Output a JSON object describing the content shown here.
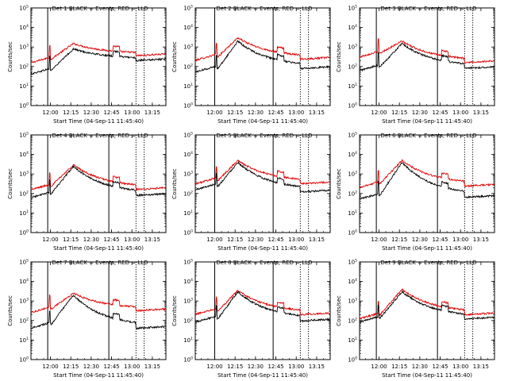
{
  "chart_data": [
    {
      "type": "line",
      "title": "Det 1 BLACK = Events, RED = LLD",
      "ylabel": "Counts/sec",
      "xlabel": "Start Time (04-Sep-11 11:45:40)",
      "x_ticks": [
        "12:00",
        "12:15",
        "12:30",
        "12:45",
        "13:00",
        "13:15"
      ],
      "y_ticks": [
        "10^0",
        "10^1",
        "10^2",
        "10^3",
        "10^4",
        "10^5"
      ],
      "yscale": "log",
      "ylim": [
        1,
        100000
      ],
      "xlim": [
        "11:45:40",
        "13:25:00"
      ],
      "markers": {
        "solid": [
          "11:58",
          "12:43"
        ],
        "dotted": [
          "13:03",
          "13:09"
        ]
      },
      "series": [
        {
          "color": "#000000",
          "base": 40,
          "peak": 800,
          "end": 250
        },
        {
          "color": "#e00000",
          "base": 150,
          "peak": 1500,
          "end": 450
        }
      ]
    },
    {
      "type": "line",
      "title": "Det 2 BLACK = Events, RED = LLD",
      "ylabel": "Counts/sec",
      "xlabel": "Start Time (04-Sep-11 11:45:40)",
      "x_ticks": [
        "12:00",
        "12:15",
        "12:30",
        "12:45",
        "13:00",
        "13:15"
      ],
      "y_ticks": [
        "10^0",
        "10^1",
        "10^2",
        "10^3",
        "10^4",
        "10^5"
      ],
      "yscale": "log",
      "ylim": [
        1,
        100000
      ],
      "xlim": [
        "11:45:40",
        "13:25:00"
      ],
      "markers": {
        "solid": [
          "12:00",
          "12:43"
        ],
        "dotted": [
          "13:03",
          "13:09"
        ]
      },
      "series": [
        {
          "color": "#000000",
          "base": 50,
          "peak": 2000,
          "end": 100
        },
        {
          "color": "#e00000",
          "base": 200,
          "peak": 3000,
          "end": 300
        }
      ]
    },
    {
      "type": "line",
      "title": "Det 3 BLACK = Events, RED = LLD",
      "ylabel": "Counts/sec",
      "xlabel": "Start Time (04-Sep-11 11:45:40)",
      "x_ticks": [
        "12:00",
        "12:15",
        "12:30",
        "12:45",
        "13:00",
        "13:15"
      ],
      "y_ticks": [
        "10^0",
        "10^1",
        "10^2",
        "10^3",
        "10^4",
        "10^5"
      ],
      "yscale": "log",
      "ylim": [
        1,
        100000
      ],
      "xlim": [
        "11:45:40",
        "13:25:00"
      ],
      "markers": {
        "solid": [
          "11:58",
          "12:43"
        ],
        "dotted": [
          "13:03",
          "13:09"
        ]
      },
      "series": [
        {
          "color": "#000000",
          "base": 60,
          "peak": 1500,
          "end": 100
        },
        {
          "color": "#e00000",
          "base": 300,
          "peak": 2000,
          "end": 200
        }
      ]
    },
    {
      "type": "line",
      "title": "Det 4 BLACK = Events, RED = LLD",
      "ylabel": "Counts/sec",
      "xlabel": "Start Time (04-Sep-11 11:45:40)",
      "x_ticks": [
        "12:00",
        "12:15",
        "12:30",
        "12:45",
        "13:00",
        "13:15"
      ],
      "y_ticks": [
        "10^0",
        "10^1",
        "10^2",
        "10^3",
        "10^4",
        "10^5"
      ],
      "yscale": "log",
      "ylim": [
        1,
        100000
      ],
      "xlim": [
        "11:45:40",
        "13:25:00"
      ],
      "markers": {
        "solid": [
          "11:58",
          "12:43"
        ],
        "dotted": [
          "13:03",
          "13:09"
        ]
      },
      "series": [
        {
          "color": "#000000",
          "base": 60,
          "peak": 2500,
          "end": 100
        },
        {
          "color": "#e00000",
          "base": 150,
          "peak": 3000,
          "end": 200
        }
      ]
    },
    {
      "type": "line",
      "title": "Det 5 BLACK = Events, RED = LLD",
      "ylabel": "Counts/sec",
      "xlabel": "Start Time (04-Sep-11 11:45:40)",
      "x_ticks": [
        "12:00",
        "12:15",
        "12:30",
        "12:45",
        "13:00",
        "13:15"
      ],
      "y_ticks": [
        "10^0",
        "10^1",
        "10^2",
        "10^3",
        "10^4",
        "10^5"
      ],
      "yscale": "log",
      "ylim": [
        1,
        100000
      ],
      "xlim": [
        "11:45:40",
        "13:25:00"
      ],
      "markers": {
        "solid": [
          "12:00",
          "12:43"
        ],
        "dotted": [
          "13:03",
          "13:09"
        ]
      },
      "series": [
        {
          "color": "#000000",
          "base": 150,
          "peak": 4000,
          "end": 150
        },
        {
          "color": "#e00000",
          "base": 300,
          "peak": 5000,
          "end": 400
        }
      ]
    },
    {
      "type": "line",
      "title": "Det 6 BLACK = Events, RED = LLD",
      "ylabel": "Counts/sec",
      "xlabel": "Start Time (04-Sep-11 11:45:40)",
      "x_ticks": [
        "12:00",
        "12:15",
        "12:30",
        "12:45",
        "13:00",
        "13:15"
      ],
      "y_ticks": [
        "10^0",
        "10^1",
        "10^2",
        "10^3",
        "10^4",
        "10^5"
      ],
      "yscale": "log",
      "ylim": [
        1,
        100000
      ],
      "xlim": [
        "11:45:40",
        "13:25:00"
      ],
      "markers": {
        "solid": [
          "11:58",
          "12:43"
        ],
        "dotted": [
          "13:03",
          "13:09"
        ]
      },
      "series": [
        {
          "color": "#000000",
          "base": 50,
          "peak": 4000,
          "end": 80
        },
        {
          "color": "#e00000",
          "base": 200,
          "peak": 5000,
          "end": 300
        }
      ]
    },
    {
      "type": "line",
      "title": "Det 7 BLACK = Events, RED = LLD",
      "ylabel": "Counts/sec",
      "xlabel": "Start Time (04-Sep-11 11:45:40)",
      "x_ticks": [
        "12:00",
        "12:15",
        "12:30",
        "12:45",
        "13:00",
        "13:15"
      ],
      "y_ticks": [
        "10^0",
        "10^1",
        "10^2",
        "10^3",
        "10^4",
        "10^5"
      ],
      "yscale": "log",
      "ylim": [
        1,
        100000
      ],
      "xlim": [
        "11:45:40",
        "13:25:00"
      ],
      "markers": {
        "solid": [
          "11:58",
          "12:43"
        ],
        "dotted": [
          "13:03",
          "13:09"
        ]
      },
      "series": [
        {
          "color": "#000000",
          "base": 40,
          "peak": 2000,
          "end": 50
        },
        {
          "color": "#e00000",
          "base": 250,
          "peak": 2500,
          "end": 400
        }
      ]
    },
    {
      "type": "line",
      "title": "Det 8 BLACK = Events, RED = LLD",
      "ylabel": "Counts/sec",
      "xlabel": "Start Time (04-Sep-11 11:45:40)",
      "x_ticks": [
        "12:00",
        "12:15",
        "12:30",
        "12:45",
        "13:00",
        "13:15"
      ],
      "y_ticks": [
        "10^0",
        "10^1",
        "10^2",
        "10^3",
        "10^4",
        "10^5"
      ],
      "yscale": "log",
      "ylim": [
        1,
        100000
      ],
      "xlim": [
        "11:45:40",
        "13:25:00"
      ],
      "markers": {
        "solid": [
          "12:00",
          "12:43"
        ],
        "dotted": [
          "13:03",
          "13:09"
        ]
      },
      "series": [
        {
          "color": "#000000",
          "base": 80,
          "peak": 3000,
          "end": 120
        },
        {
          "color": "#e00000",
          "base": 200,
          "peak": 3500,
          "end": 250
        }
      ]
    },
    {
      "type": "line",
      "title": "Det 9 BLACK = Events, RED = LLD",
      "ylabel": "Counts/sec",
      "xlabel": "Start Time (04-Sep-11 11:45:40)",
      "x_ticks": [
        "12:00",
        "12:15",
        "12:30",
        "12:45",
        "13:00",
        "13:15"
      ],
      "y_ticks": [
        "10^0",
        "10^1",
        "10^2",
        "10^3",
        "10^4",
        "10^5"
      ],
      "yscale": "log",
      "ylim": [
        1,
        100000
      ],
      "xlim": [
        "11:45:40",
        "13:25:00"
      ],
      "markers": {
        "solid": [
          "11:58",
          "12:43"
        ],
        "dotted": [
          "13:03",
          "13:09"
        ]
      },
      "series": [
        {
          "color": "#000000",
          "base": 80,
          "peak": 3000,
          "end": 150
        },
        {
          "color": "#e00000",
          "base": 120,
          "peak": 4000,
          "end": 250
        }
      ]
    }
  ]
}
